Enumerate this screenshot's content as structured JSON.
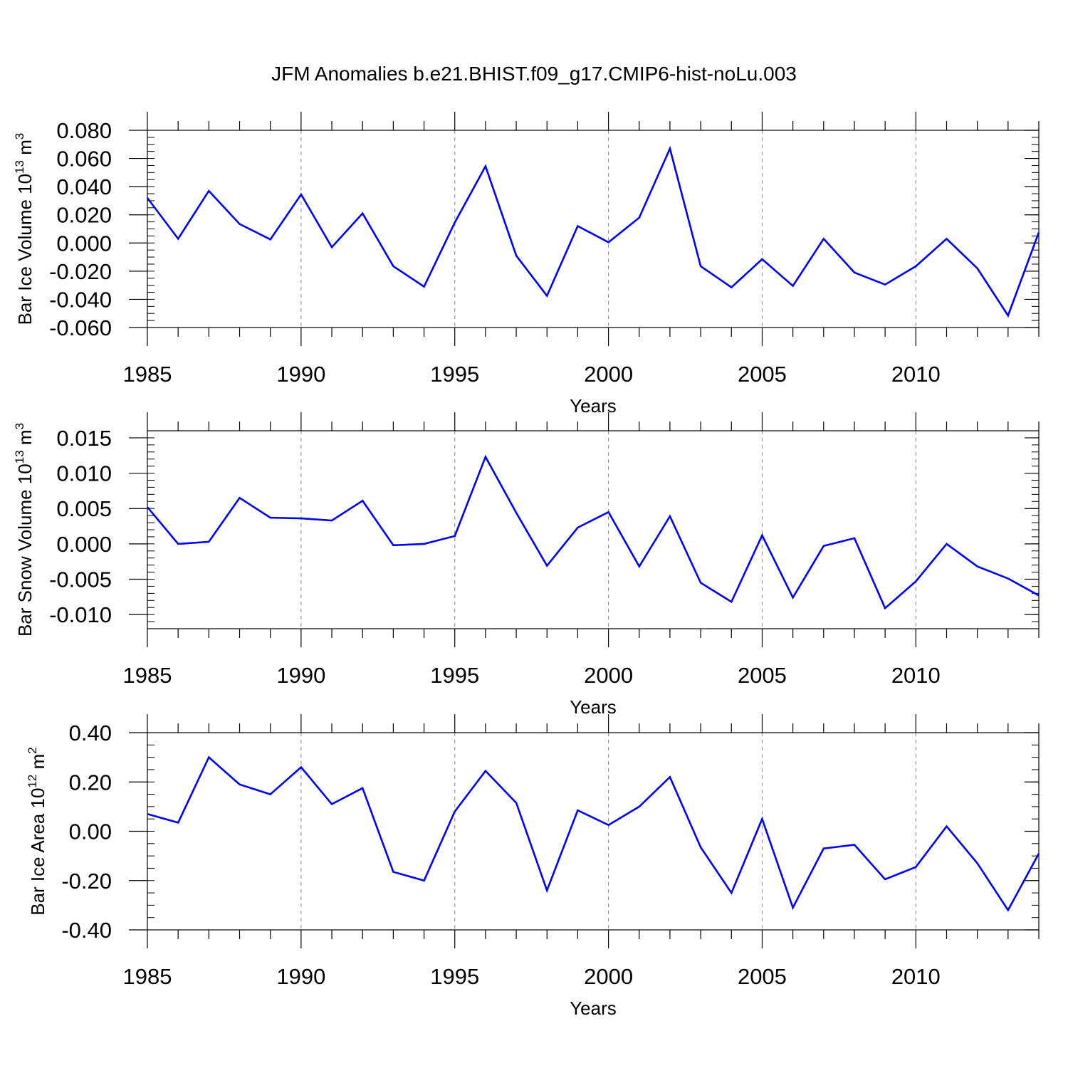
{
  "title": "JFM Anomalies b.e21.BHIST.f09_g17.CMIP6-hist-noLu.003",
  "line_color": "#0000ff",
  "chart_data": [
    {
      "type": "line",
      "xlabel": "Years",
      "ylabel": "Bar Ice Volume 10",
      "ylabel_exp": "13",
      "ylabel_unit": " m",
      "ylabel_unit_exp": "3",
      "xlim": [
        1985,
        2014
      ],
      "ylim": [
        -0.06,
        0.08
      ],
      "x_ticks": [
        1985,
        1990,
        1995,
        2000,
        2005,
        2010
      ],
      "x_tick_labels": [
        "1985",
        "1990",
        "1995",
        "2000",
        "2005",
        "2010"
      ],
      "y_ticks": [
        -0.06,
        -0.04,
        -0.02,
        0.0,
        0.02,
        0.04,
        0.06,
        0.08
      ],
      "y_tick_labels": [
        "-0.060",
        "-0.040",
        "-0.020",
        "0.000",
        "0.020",
        "0.040",
        "0.060",
        "0.080"
      ],
      "y_minor_step": 0.005,
      "grid": "vertical dashed at major x ticks",
      "x": [
        1985,
        1986,
        1987,
        1988,
        1989,
        1990,
        1991,
        1992,
        1993,
        1994,
        1995,
        1996,
        1997,
        1998,
        1999,
        2000,
        2001,
        2002,
        2003,
        2004,
        2005,
        2006,
        2007,
        2008,
        2009,
        2010,
        2011,
        2012,
        2013,
        2014
      ],
      "y": [
        0.032,
        0.003,
        0.037,
        0.0135,
        0.0025,
        0.0345,
        -0.003,
        0.021,
        -0.0165,
        -0.031,
        0.0145,
        0.0545,
        -0.009,
        -0.0375,
        0.012,
        0.0005,
        0.018,
        0.067,
        -0.0165,
        -0.0315,
        -0.0115,
        -0.0305,
        0.003,
        -0.021,
        -0.0295,
        -0.0165,
        0.003,
        -0.018,
        -0.0515,
        0.0075
      ]
    },
    {
      "type": "line",
      "xlabel": "Years",
      "ylabel": "Bar Snow Volume 10",
      "ylabel_exp": "13",
      "ylabel_unit": " m",
      "ylabel_unit_exp": "3",
      "xlim": [
        1985,
        2014
      ],
      "ylim": [
        -0.012,
        0.016
      ],
      "x_ticks": [
        1985,
        1990,
        1995,
        2000,
        2005,
        2010
      ],
      "x_tick_labels": [
        "1985",
        "1990",
        "1995",
        "2000",
        "2005",
        "2010"
      ],
      "y_ticks": [
        -0.01,
        -0.005,
        0.0,
        0.005,
        0.01,
        0.015
      ],
      "y_tick_labels": [
        "-0.010",
        "-0.005",
        "0.000",
        "0.005",
        "0.010",
        "0.015"
      ],
      "y_minor_step": 0.001,
      "grid": "vertical dashed at major x ticks",
      "x": [
        1985,
        1986,
        1987,
        1988,
        1989,
        1990,
        1991,
        1992,
        1993,
        1994,
        1995,
        1996,
        1997,
        1998,
        1999,
        2000,
        2001,
        2002,
        2003,
        2004,
        2005,
        2006,
        2007,
        2008,
        2009,
        2010,
        2011,
        2012,
        2013,
        2014
      ],
      "y": [
        0.0052,
        0.0,
        0.0003,
        0.0065,
        0.0037,
        0.0036,
        0.0033,
        0.0061,
        -0.0002,
        0.0,
        0.0011,
        0.0123,
        0.0044,
        -0.0031,
        0.0023,
        0.0045,
        -0.0032,
        0.0039,
        -0.0055,
        -0.0082,
        0.0012,
        -0.0076,
        -0.0003,
        0.0008,
        -0.0091,
        -0.0053,
        0.0,
        -0.0032,
        -0.0049,
        -0.0073
      ]
    },
    {
      "type": "line",
      "xlabel": "Years",
      "ylabel": "Bar Ice Area 10",
      "ylabel_exp": "12",
      "ylabel_unit": " m",
      "ylabel_unit_exp": "2",
      "xlim": [
        1985,
        2014
      ],
      "ylim": [
        -0.4,
        0.4
      ],
      "x_ticks": [
        1985,
        1990,
        1995,
        2000,
        2005,
        2010
      ],
      "x_tick_labels": [
        "1985",
        "1990",
        "1995",
        "2000",
        "2005",
        "2010"
      ],
      "y_ticks": [
        -0.4,
        -0.2,
        0.0,
        0.2,
        0.4
      ],
      "y_tick_labels": [
        "-0.40",
        "-0.20",
        "0.00",
        "0.20",
        "0.40"
      ],
      "y_minor_step": 0.05,
      "grid": "vertical dashed at major x ticks",
      "x": [
        1985,
        1986,
        1987,
        1988,
        1989,
        1990,
        1991,
        1992,
        1993,
        1994,
        1995,
        1996,
        1997,
        1998,
        1999,
        2000,
        2001,
        2002,
        2003,
        2004,
        2005,
        2006,
        2007,
        2008,
        2009,
        2010,
        2011,
        2012,
        2013,
        2014
      ],
      "y": [
        0.07,
        0.035,
        0.3,
        0.19,
        0.15,
        0.26,
        0.11,
        0.175,
        -0.165,
        -0.2,
        0.08,
        0.245,
        0.115,
        -0.24,
        0.085,
        0.025,
        0.1,
        0.22,
        -0.065,
        -0.25,
        0.05,
        -0.31,
        -0.07,
        -0.055,
        -0.195,
        -0.145,
        0.02,
        -0.13,
        -0.32,
        -0.09
      ]
    }
  ]
}
